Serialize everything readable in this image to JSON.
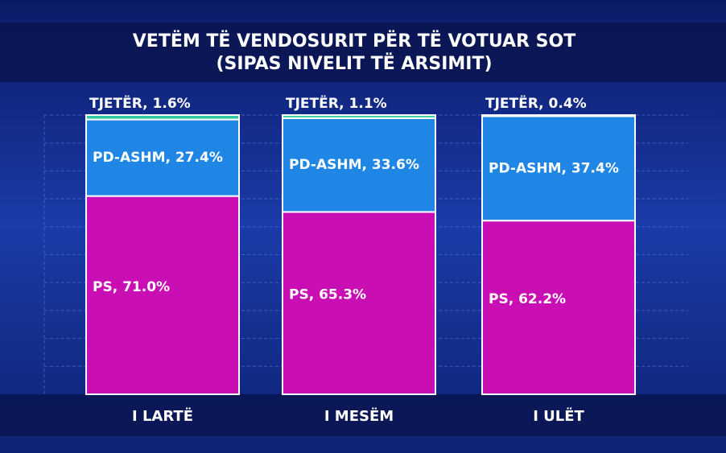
{
  "chart_data": {
    "type": "stacked-bar",
    "title": "VETËM TË VENDOSURIT PËR TË VOTUAR SOT",
    "subtitle": "(SIPAS NIVELIT TË ARSIMIT)",
    "categories": [
      "I LARTË",
      "I MESËM",
      "I ULËT"
    ],
    "ylim": [
      0,
      100
    ],
    "series": [
      {
        "name": "PS",
        "color": "#c90fb4",
        "values": [
          71.0,
          65.3,
          62.2
        ],
        "value_labels": [
          ", 71.0%",
          ", 65.3%",
          ", 62.2%"
        ]
      },
      {
        "name": "PD-ASHM",
        "color": "#1f86e6",
        "values": [
          27.4,
          33.6,
          37.4
        ],
        "value_labels": [
          ", 27.4%",
          ", 33.6%",
          ", 37.4%"
        ]
      },
      {
        "name": "TJETËR",
        "color": "#2fc9a5",
        "values": [
          1.6,
          1.1,
          0.4
        ],
        "value_labels": [
          ", 1.6%",
          ", 1.1%",
          ", 0.4%"
        ]
      }
    ]
  }
}
